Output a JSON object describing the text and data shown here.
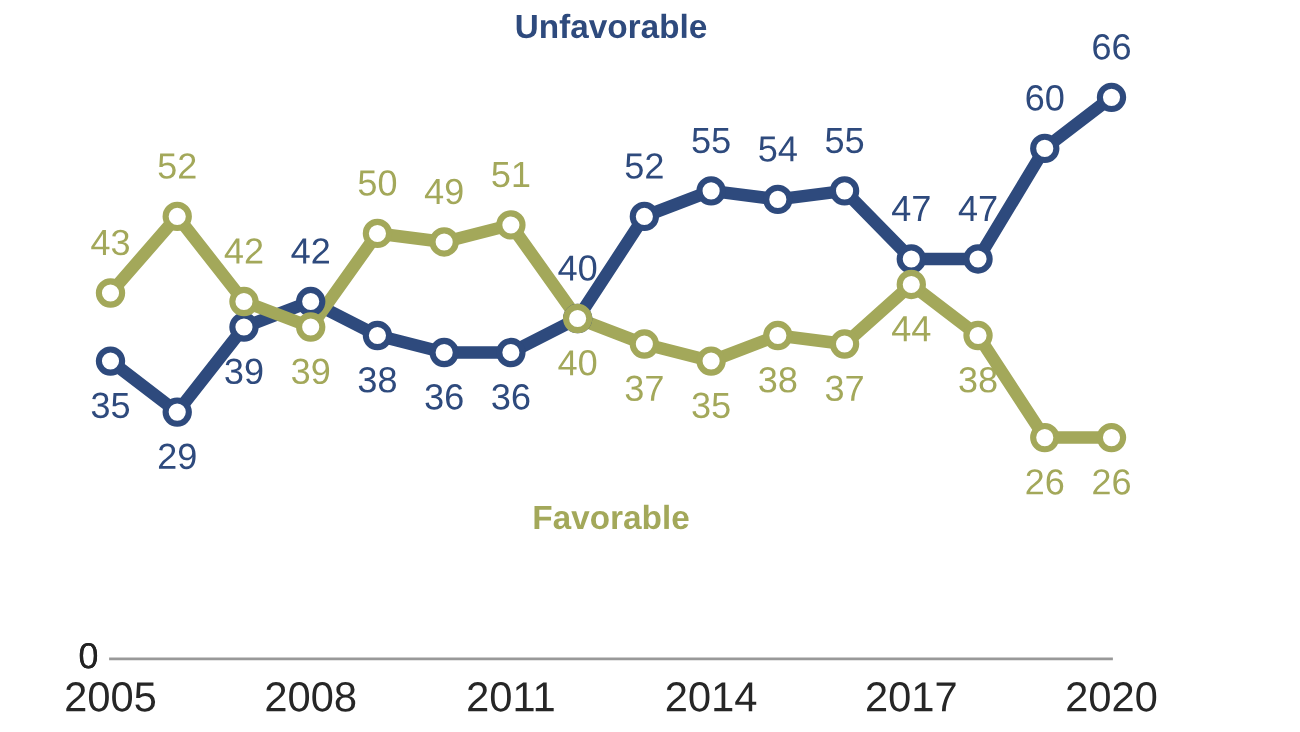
{
  "chart_data": {
    "type": "line",
    "x": [
      2005,
      2006,
      2007,
      2008,
      2009,
      2010,
      2011,
      2012,
      2013,
      2014,
      2015,
      2016,
      2017,
      2018,
      2019,
      2020
    ],
    "series": [
      {
        "name": "Unfavorable",
        "color": "#2e4a7d",
        "values": [
          35,
          29,
          39,
          42,
          38,
          36,
          36,
          40,
          52,
          55,
          54,
          55,
          47,
          47,
          60,
          66
        ]
      },
      {
        "name": "Favorable",
        "color": "#a3a85a",
        "values": [
          43,
          52,
          42,
          39,
          50,
          49,
          51,
          40,
          37,
          35,
          38,
          37,
          44,
          38,
          26,
          26
        ]
      }
    ],
    "xlim": [
      2005,
      2020
    ],
    "xticks": [
      2005,
      2008,
      2011,
      2014,
      2017,
      2020
    ],
    "annotations": [
      "0"
    ],
    "data_labels": true,
    "marker": "circle",
    "line_style": "solid",
    "grid": false,
    "legend": false
  }
}
